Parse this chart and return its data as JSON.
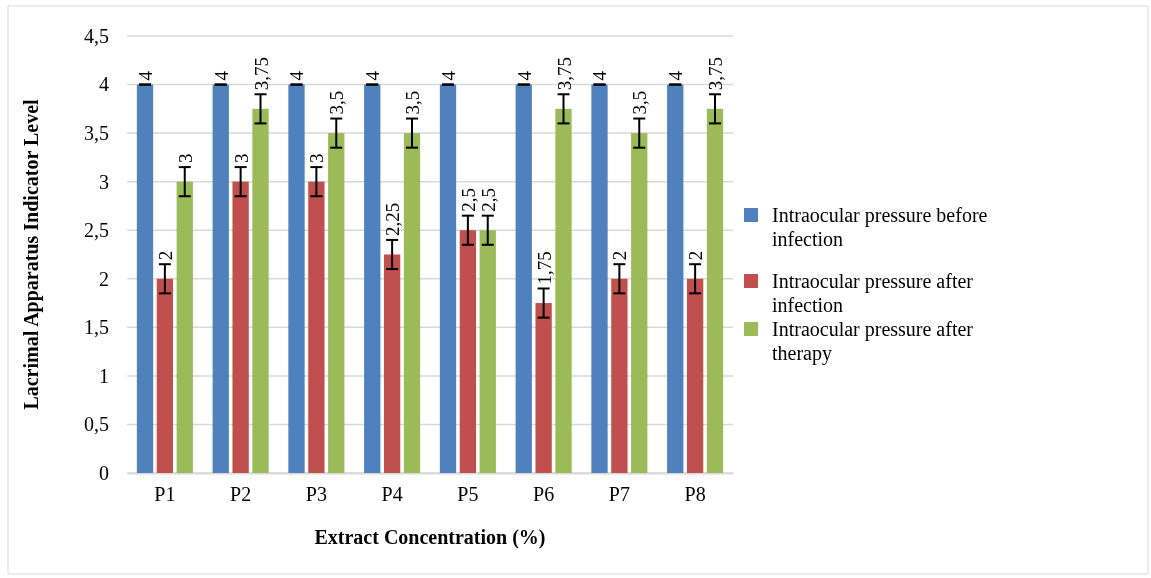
{
  "chart_data": {
    "type": "bar",
    "xlabel": "Extract Concentration (%)",
    "ylabel": "Lacrimal Apparatus Indicator Level",
    "categories": [
      "P1",
      "P2",
      "P3",
      "P4",
      "P5",
      "P6",
      "P7",
      "P8"
    ],
    "series": [
      {
        "name": "Intraocular pressure before infection",
        "color": "#4f81bd",
        "values": [
          4,
          4,
          4,
          4,
          4,
          4,
          4,
          4
        ],
        "errors": [
          0,
          0,
          0,
          0,
          0,
          0,
          0,
          0
        ],
        "value_labels": [
          "4",
          "4",
          "4",
          "4",
          "4",
          "4",
          "4",
          "4"
        ]
      },
      {
        "name": "Intraocular pressure after infection",
        "color": "#c0504d",
        "values": [
          2,
          3,
          3,
          2.25,
          2.5,
          1.75,
          2,
          2
        ],
        "errors": [
          0.15,
          0.15,
          0.15,
          0.15,
          0.15,
          0.15,
          0.15,
          0.15
        ],
        "value_labels": [
          "2",
          "3",
          "3",
          "2,25",
          "2,5",
          "1,75",
          "2",
          "2"
        ]
      },
      {
        "name": "Intraocular pressure after therapy",
        "color": "#9bbb59",
        "values": [
          3,
          3.75,
          3.5,
          3.5,
          2.5,
          3.75,
          3.5,
          3.75
        ],
        "errors": [
          0.15,
          0.15,
          0.15,
          0.15,
          0.15,
          0.15,
          0.15,
          0.15
        ],
        "value_labels": [
          "3",
          "3,75",
          "3,5",
          "3,5",
          "2,5",
          "3,75",
          "3,5",
          "3,75"
        ]
      }
    ],
    "ylim": [
      0,
      4.5
    ],
    "yticks": [
      0,
      {
        "value": 0.5,
        "label": "0,5"
      },
      1,
      {
        "value": 1.5,
        "label": "1,5"
      },
      2,
      {
        "value": 2.5,
        "label": "2,5"
      },
      3,
      {
        "value": 3.5,
        "label": "3,5"
      },
      4,
      {
        "value": 4.5,
        "label": "4,5"
      }
    ],
    "grid": "y",
    "legend": "right"
  }
}
